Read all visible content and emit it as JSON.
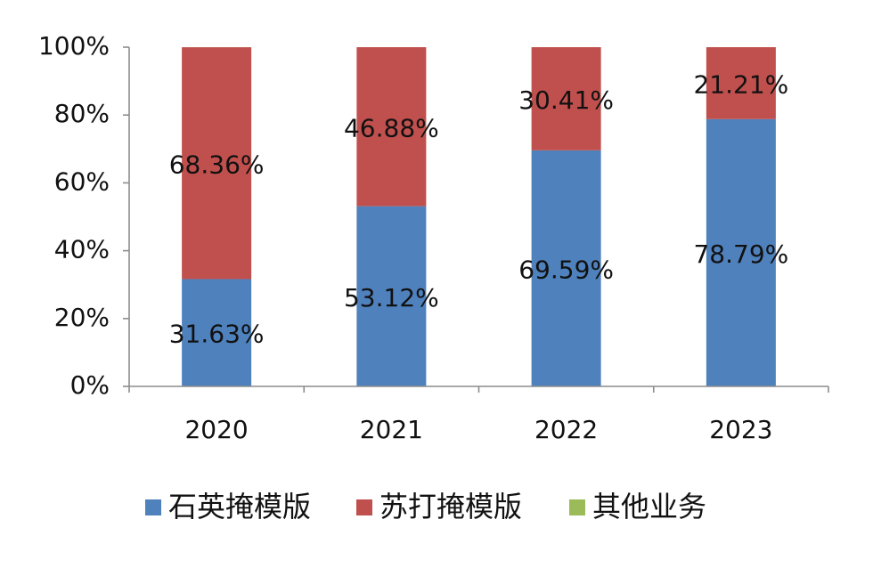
{
  "chart_data": {
    "type": "bar",
    "stacked": true,
    "percent": true,
    "title": "",
    "xlabel": "",
    "ylabel": "",
    "categories": [
      "2020",
      "2021",
      "2022",
      "2023"
    ],
    "ylim": [
      0,
      100
    ],
    "yticks": [
      "0%",
      "20%",
      "40%",
      "60%",
      "80%",
      "100%"
    ],
    "grid": false,
    "legend_position": "bottom",
    "series": [
      {
        "name": "石英掩模版",
        "color": "#4f81bd",
        "values": [
          31.63,
          53.12,
          69.59,
          78.79
        ],
        "labels": [
          "31.63%",
          "53.12%",
          "69.59%",
          "78.79%"
        ]
      },
      {
        "name": "苏打掩模版",
        "color": "#c0504d",
        "values": [
          68.36,
          46.88,
          30.41,
          21.21
        ],
        "labels": [
          "68.36%",
          "46.88%",
          "30.41%",
          "21.21%"
        ]
      },
      {
        "name": "其他业务",
        "color": "#9bbb59",
        "values": [
          0.01,
          0,
          0,
          0
        ],
        "labels": [
          "",
          "",
          "",
          ""
        ]
      }
    ]
  }
}
